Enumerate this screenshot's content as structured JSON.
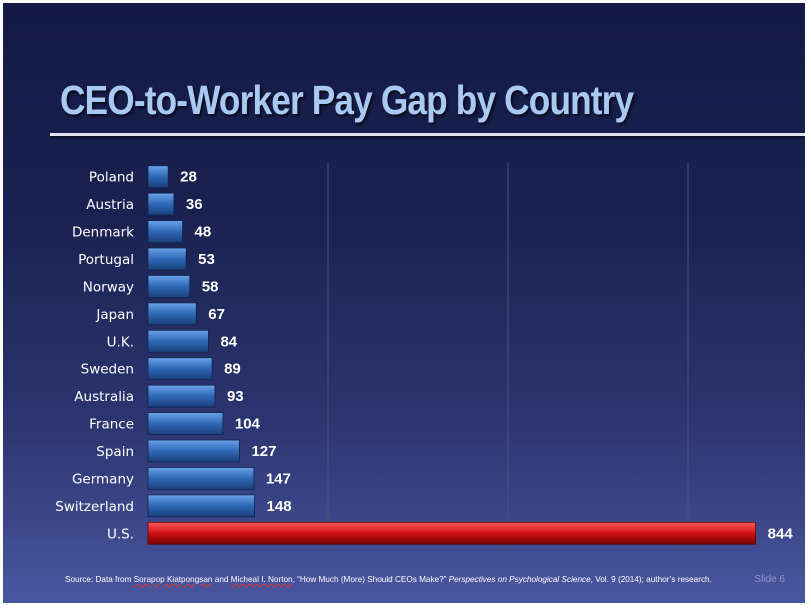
{
  "slide": {
    "title": "CEO-to-Worker Pay Gap by Country",
    "slide_number": "Slide 6",
    "source": {
      "prefix": "Source: Data from ",
      "author1": "Sorapop Kiatpongsan",
      "and": " and ",
      "author2": "Micheal I. Norton",
      "article": ", “How Much (More) Should CEOs Make?” ",
      "journal": "Perspectives on Psychological Science",
      "suffix": ", Vol. 9  (2014); author’s research."
    }
  },
  "chart_data": {
    "type": "bar",
    "orientation": "horizontal",
    "categories": [
      "Poland",
      "Austria",
      "Denmark",
      "Portugal",
      "Norway",
      "Japan",
      "U.K.",
      "Sweden",
      "Australia",
      "France",
      "Spain",
      "Germany",
      "Switzerland",
      "U.S."
    ],
    "values": [
      28,
      36,
      48,
      53,
      58,
      67,
      84,
      89,
      93,
      104,
      127,
      147,
      148,
      844
    ],
    "value_labels": [
      "28",
      "36",
      "48",
      "53",
      "58",
      "67",
      "84",
      "89",
      "93",
      "104",
      "127",
      "147",
      "148",
      "844"
    ],
    "xlim": [
      0,
      1000
    ],
    "grid": {
      "vertical": true,
      "horizontal": false
    },
    "colors": {
      "bar": "#2f68b6",
      "bar_highlight": "#cc1111",
      "grid": "#4a527c"
    },
    "highlight_category": "U.S.",
    "title": "",
    "xlabel": "",
    "ylabel": ""
  }
}
